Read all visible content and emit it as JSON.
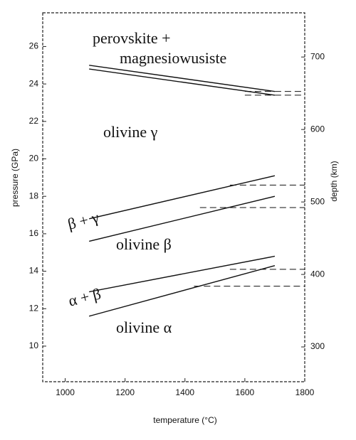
{
  "chart_data": {
    "type": "line",
    "xlabel": "temperature  (°C)",
    "ylabel": "pressure (GPa)",
    "y2label": "depth (km)",
    "xlim": [
      925,
      1800
    ],
    "xticks": [
      1000,
      1200,
      1400,
      1600,
      1800
    ],
    "ylim": [
      8.1,
      27.8
    ],
    "yticks": [
      10,
      12,
      14,
      16,
      18,
      20,
      22,
      24,
      26
    ],
    "y2lim": [
      252,
      761
    ],
    "y2ticks": [
      300,
      400,
      500,
      600,
      700
    ],
    "color": "#111111",
    "series": [
      {
        "x": [
          1080,
          1700
        ],
        "values": [
          25.0,
          23.6
        ]
      },
      {
        "x": [
          1080,
          1700
        ],
        "values": [
          24.8,
          23.4
        ]
      },
      {
        "x": [
          1080,
          1700
        ],
        "values": [
          16.8,
          19.1
        ]
      },
      {
        "x": [
          1080,
          1700
        ],
        "values": [
          15.6,
          18.0
        ]
      },
      {
        "x": [
          1080,
          1700
        ],
        "values": [
          12.9,
          14.8
        ]
      },
      {
        "x": [
          1080,
          1700
        ],
        "values": [
          11.6,
          14.3
        ]
      },
      {
        "x": [
          1600,
          1800
        ],
        "values": [
          23.6,
          23.6
        ],
        "dashed": true
      },
      {
        "x": [
          1600,
          1800
        ],
        "values": [
          23.4,
          23.4
        ],
        "dashed": true
      },
      {
        "x": [
          1550,
          1800
        ],
        "values": [
          18.6,
          18.6
        ],
        "dashed": true
      },
      {
        "x": [
          1450,
          1800
        ],
        "values": [
          17.4,
          17.4
        ],
        "dashed": true
      },
      {
        "x": [
          1550,
          1800
        ],
        "values": [
          14.1,
          14.1
        ],
        "dashed": true
      },
      {
        "x": [
          1430,
          1800
        ],
        "values": [
          13.2,
          13.2
        ],
        "dashed": true
      }
    ],
    "annotations": [
      "perovskite +",
      "magnesiowusiste",
      "olivine γ",
      "β + γ",
      "olivine β",
      "α + β",
      "olivine α"
    ]
  }
}
